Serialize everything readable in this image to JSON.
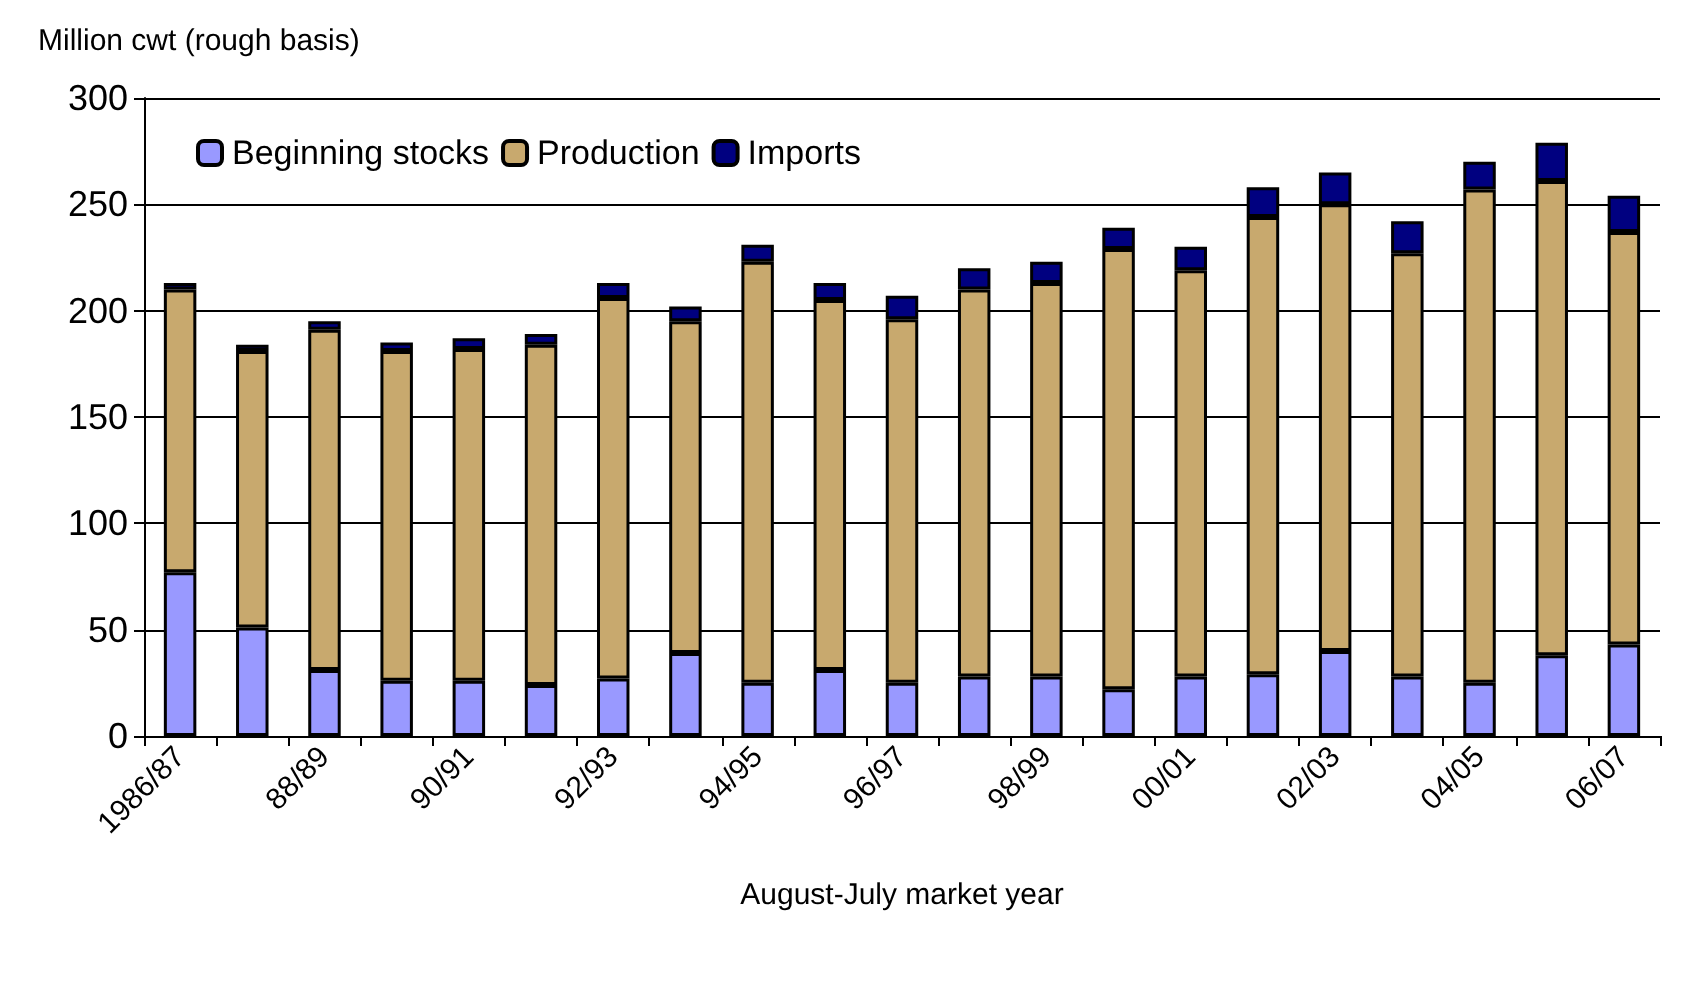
{
  "chart_data": {
    "type": "bar",
    "stacked": true,
    "ylabel": "Million cwt (rough basis)",
    "xlabel": "August-July market year",
    "categories": [
      "1986/87",
      null,
      "88/89",
      null,
      "90/91",
      null,
      "92/93",
      null,
      "94/95",
      null,
      "96/97",
      null,
      "98/99",
      null,
      "00/01",
      null,
      "02/03",
      null,
      "04/05",
      null,
      "06/07"
    ],
    "series": [
      {
        "name": "Beginning stocks",
        "color": "#9999ff",
        "values": [
          77,
          51,
          31,
          26,
          26,
          24,
          27,
          39,
          25,
          31,
          25,
          28,
          28,
          22,
          28,
          29,
          40,
          28,
          25,
          38,
          43
        ]
      },
      {
        "name": "Production",
        "color": "#c8a96e",
        "values": [
          133,
          130,
          160,
          155,
          156,
          160,
          179,
          156,
          198,
          174,
          171,
          182,
          185,
          207,
          191,
          215,
          210,
          199,
          232,
          223,
          194
        ]
      },
      {
        "name": "Imports",
        "color": "#000080",
        "values": [
          3,
          3,
          4,
          4,
          5,
          5,
          7,
          7,
          8,
          8,
          11,
          10,
          10,
          10,
          11,
          14,
          15,
          15,
          13,
          18,
          17
        ]
      }
    ],
    "ylim": [
      0,
      300
    ],
    "yticks": [
      0,
      50,
      100,
      150,
      200,
      250,
      300
    ],
    "grid": "y",
    "legend": "top left"
  }
}
